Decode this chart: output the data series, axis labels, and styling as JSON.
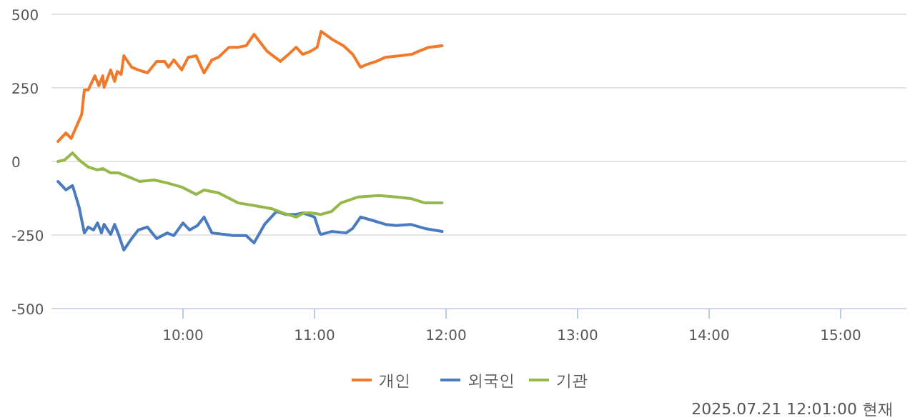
{
  "chart_data": {
    "type": "line",
    "xlim": [
      9,
      15.5
    ],
    "xticks": [
      {
        "value": 10,
        "label": "10:00"
      },
      {
        "value": 11,
        "label": "11:00"
      },
      {
        "value": 12,
        "label": "12:00"
      },
      {
        "value": 13,
        "label": "13:00"
      },
      {
        "value": 14,
        "label": "14:00"
      },
      {
        "value": 15,
        "label": "15:00"
      }
    ],
    "ylim": [
      -500,
      500
    ],
    "yticks": [
      -500,
      -250,
      0,
      250,
      500
    ],
    "grid": "y",
    "legend": "bottom",
    "marker": "none",
    "line_style": "solid",
    "annotations": [
      "2025.07.21 12:01:00 현재"
    ],
    "series": [
      {
        "name": "개인",
        "color": "#f07a2a",
        "x": [
          9.05,
          9.11,
          9.15,
          9.23,
          9.25,
          9.28,
          9.33,
          9.36,
          9.39,
          9.4,
          9.45,
          9.48,
          9.5,
          9.53,
          9.55,
          9.61,
          9.66,
          9.73,
          9.8,
          9.86,
          9.89,
          9.93,
          9.99,
          10.04,
          10.1,
          10.16,
          10.22,
          10.27,
          10.35,
          10.42,
          10.48,
          10.54,
          10.64,
          10.74,
          10.79,
          10.86,
          10.91,
          10.97,
          11.02,
          11.05,
          11.14,
          11.22,
          11.29,
          11.35,
          11.4,
          11.47,
          11.54,
          11.65,
          11.74,
          11.79,
          11.87,
          11.97
        ],
        "values": [
          68,
          97,
          78,
          160,
          243,
          243,
          291,
          257,
          291,
          252,
          311,
          272,
          306,
          296,
          359,
          320,
          311,
          301,
          340,
          340,
          320,
          345,
          311,
          354,
          359,
          301,
          345,
          354,
          388,
          388,
          393,
          432,
          374,
          340,
          359,
          388,
          364,
          374,
          388,
          442,
          413,
          393,
          364,
          320,
          330,
          340,
          354,
          359,
          364,
          374,
          388,
          393
        ]
      },
      {
        "name": "외국인",
        "color": "#4a7bc0",
        "x": [
          9.05,
          9.11,
          9.16,
          9.21,
          9.25,
          9.28,
          9.32,
          9.35,
          9.38,
          9.4,
          9.45,
          9.48,
          9.51,
          9.55,
          9.61,
          9.66,
          9.73,
          9.8,
          9.88,
          9.93,
          10.0,
          10.05,
          10.11,
          10.16,
          10.22,
          10.32,
          10.38,
          10.48,
          10.54,
          10.62,
          10.71,
          10.78,
          10.86,
          10.91,
          11.0,
          11.04,
          11.05,
          11.13,
          11.24,
          11.29,
          11.35,
          11.43,
          11.54,
          11.62,
          11.73,
          11.84,
          11.97
        ],
        "values": [
          -68,
          -97,
          -82,
          -155,
          -243,
          -223,
          -233,
          -209,
          -243,
          -214,
          -248,
          -214,
          -248,
          -301,
          -262,
          -233,
          -223,
          -262,
          -243,
          -252,
          -209,
          -233,
          -218,
          -189,
          -243,
          -248,
          -252,
          -252,
          -277,
          -214,
          -170,
          -180,
          -180,
          -175,
          -189,
          -243,
          -248,
          -238,
          -243,
          -228,
          -189,
          -199,
          -214,
          -218,
          -214,
          -228,
          -238
        ]
      },
      {
        "name": "기관",
        "color": "#96b84a",
        "x": [
          9.05,
          9.1,
          9.16,
          9.21,
          9.28,
          9.35,
          9.39,
          9.45,
          9.51,
          9.59,
          9.67,
          9.78,
          9.88,
          9.99,
          10.1,
          10.16,
          10.27,
          10.42,
          10.54,
          10.67,
          10.76,
          10.86,
          10.92,
          10.97,
          11.05,
          11.13,
          11.2,
          11.33,
          11.49,
          11.62,
          11.73,
          11.84,
          11.97
        ],
        "values": [
          0,
          5,
          29,
          5,
          -19,
          -29,
          -24,
          -39,
          -39,
          -53,
          -68,
          -63,
          -73,
          -87,
          -112,
          -97,
          -107,
          -141,
          -150,
          -160,
          -175,
          -189,
          -175,
          -175,
          -180,
          -170,
          -141,
          -121,
          -116,
          -121,
          -126,
          -141,
          -141
        ]
      }
    ]
  }
}
